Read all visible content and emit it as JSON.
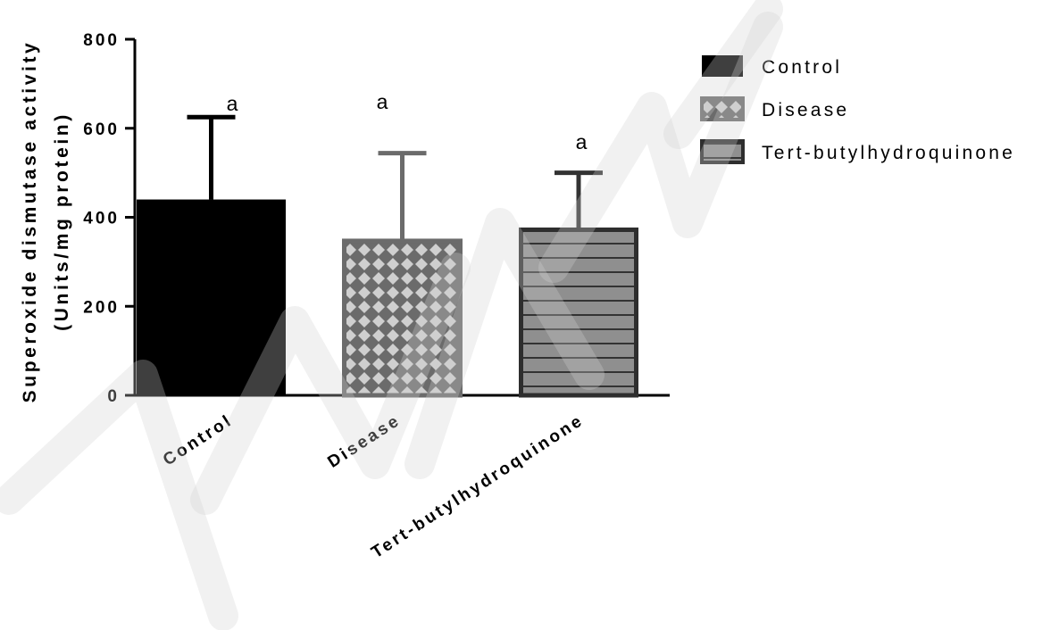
{
  "chart_data": {
    "type": "bar",
    "categories": [
      "Control",
      "Disease",
      "Tert-butylhydroquinone"
    ],
    "values": [
      440,
      352,
      377
    ],
    "errors": [
      185,
      192,
      123
    ],
    "significance": [
      "a",
      "a",
      "a"
    ],
    "ylabel_line1": "Superoxide dismutase activity",
    "ylabel_line2": "(Units/mg protein)",
    "xlabel": "",
    "ylim": [
      0,
      800
    ],
    "yticks": [
      0,
      200,
      400,
      600,
      800
    ],
    "grid": false,
    "legend_position": "right",
    "legend": [
      {
        "name": "Control",
        "pattern": "solid"
      },
      {
        "name": "Disease",
        "pattern": "crosshatch"
      },
      {
        "name": "Tert-butylhydroquinone",
        "pattern": "horizontal-stripes"
      }
    ],
    "colors": {
      "control_fill": "#000000",
      "disease_fill": "#6b6b6b",
      "disease_pattern": "#c8c8c8",
      "tbhq_fill": "#8a8a8a",
      "tbhq_stroke": "#2e2e2e",
      "disease_error": "#6b6b6b",
      "tbhq_error": "#333333"
    }
  }
}
